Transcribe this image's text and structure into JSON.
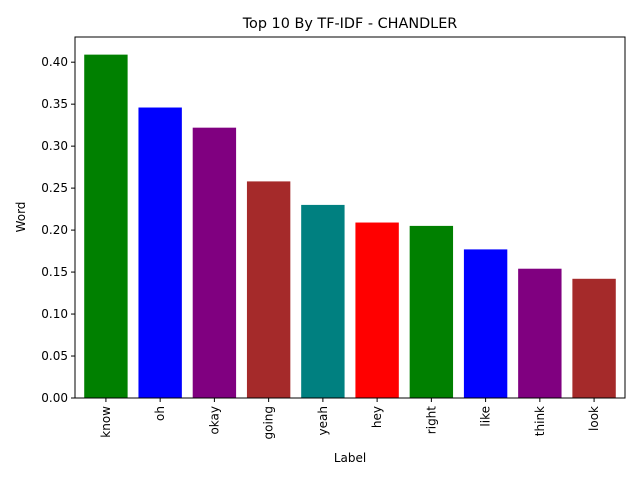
{
  "chart_data": {
    "type": "bar",
    "title": "Top 10 By TF-IDF - CHANDLER",
    "xlabel": "Label",
    "ylabel": "Word",
    "categories": [
      "know",
      "oh",
      "okay",
      "going",
      "yeah",
      "hey",
      "right",
      "like",
      "think",
      "look"
    ],
    "values": [
      0.409,
      0.346,
      0.322,
      0.258,
      0.23,
      0.209,
      0.205,
      0.177,
      0.154,
      0.142
    ],
    "colors": [
      "#008000",
      "#0000ff",
      "#800080",
      "#a52a2a",
      "#008080",
      "#ff0000",
      "#008000",
      "#0000ff",
      "#800080",
      "#a52a2a"
    ],
    "ylim": [
      0,
      0.43
    ],
    "yticks": [
      "0.00",
      "0.05",
      "0.10",
      "0.15",
      "0.20",
      "0.25",
      "0.30",
      "0.35",
      "0.40"
    ],
    "grid": false,
    "legend": "none"
  }
}
